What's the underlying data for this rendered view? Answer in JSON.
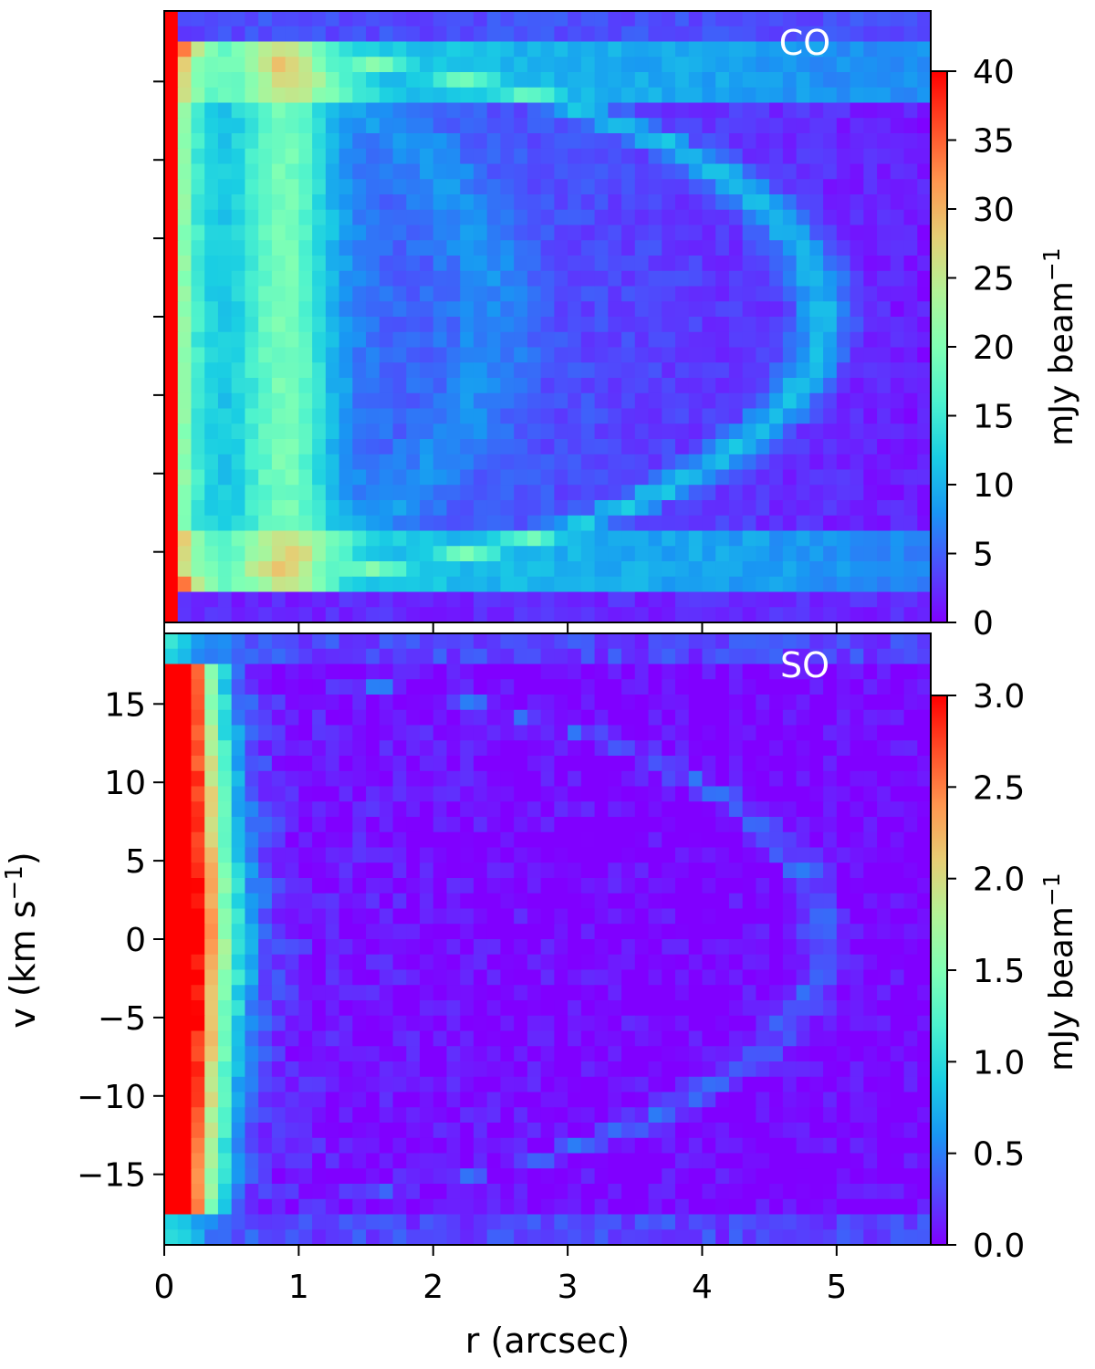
{
  "chart_data": [
    {
      "type": "heatmap",
      "panel": "top",
      "label": "CO",
      "x_range": [
        0,
        5.7
      ],
      "y_range": [
        -19.5,
        19.5
      ],
      "x_ticks": [
        0,
        1,
        2,
        3,
        4,
        5
      ],
      "y_ticks": [
        -15,
        -10,
        -5,
        0,
        5,
        10,
        15
      ],
      "x_tick_labels_shown": false,
      "y_tick_labels_shown": false,
      "colorbar": {
        "label": "mJy beam",
        "label_exponent": "−1",
        "range": [
          0,
          40
        ],
        "ticks": [
          "0",
          "5",
          "10",
          "15",
          "20",
          "25",
          "30",
          "35",
          "40"
        ],
        "colormap": "rainbow"
      }
    },
    {
      "type": "heatmap",
      "panel": "bottom",
      "label": "SO",
      "xlabel": "r (arcsec)",
      "ylabel_main": "v (km s",
      "ylabel_exponent": "−1",
      "ylabel_close": ")",
      "x_range": [
        0,
        5.7
      ],
      "y_range": [
        -19.5,
        19.5
      ],
      "x_ticks": [
        0,
        1,
        2,
        3,
        4,
        5
      ],
      "x_tick_labels": [
        "0",
        "1",
        "2",
        "3",
        "4",
        "5"
      ],
      "y_ticks": [
        -15,
        -10,
        -5,
        0,
        5,
        10,
        15
      ],
      "y_tick_labels": [
        "−15",
        "−10",
        "−5",
        "0",
        "5",
        "10",
        "15"
      ],
      "colorbar": {
        "label": "mJy beam",
        "label_exponent": "−1",
        "range": [
          0,
          3.0
        ],
        "ticks": [
          "0.0",
          "0.5",
          "1.0",
          "1.5",
          "2.0",
          "2.5",
          "3.0"
        ],
        "colormap": "rainbow"
      }
    }
  ]
}
